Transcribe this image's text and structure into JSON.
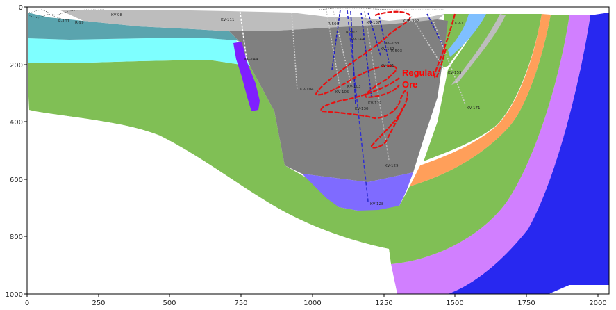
{
  "axes": {
    "x_ticks": [
      "0",
      "250",
      "500",
      "750",
      "1000",
      "1250",
      "1500",
      "1750",
      "2000"
    ],
    "y_ticks": [
      "0",
      "200",
      "400",
      "600",
      "800",
      "1000"
    ],
    "xlim": [
      0,
      2040
    ],
    "ylim": [
      1000,
      0
    ]
  },
  "annotation": {
    "line1": "Regular",
    "line2": "Ore",
    "color": "#ff0000"
  },
  "colors": {
    "teal": "#5aa4ae",
    "cyan": "#7effff",
    "green": "#80bf55",
    "grey_pit": "#808080",
    "light_grey": "#bdbdbd",
    "purple_dyke": "#7f1fff",
    "lavender_pit_floor": "#7f6bff",
    "orange": "#ff9f5a",
    "pink": "#d17fff",
    "blue": "#2828f0",
    "sky_blue": "#7fbfff"
  },
  "drillholes": [
    {
      "label": "R-101"
    },
    {
      "label": "R-99"
    },
    {
      "label": "KV-98"
    },
    {
      "label": "KV-111"
    },
    {
      "label": "KV-144"
    },
    {
      "label": "KV-104"
    },
    {
      "label": "KV-105"
    },
    {
      "label": "KV-103"
    },
    {
      "label": "KV-129"
    },
    {
      "label": "KV-127"
    },
    {
      "label": "KV-128"
    },
    {
      "label": "KV-130"
    },
    {
      "label": "KV-131"
    },
    {
      "label": "KV-132"
    },
    {
      "label": "KV-133"
    },
    {
      "label": "KV-137"
    },
    {
      "label": "R-500"
    },
    {
      "label": "R-502"
    },
    {
      "label": "R-503"
    },
    {
      "label": "KVE-392"
    },
    {
      "label": "KV-153"
    },
    {
      "label": "KV-171"
    },
    {
      "label": "KV-1"
    },
    {
      "label": "KV-144"
    }
  ]
}
